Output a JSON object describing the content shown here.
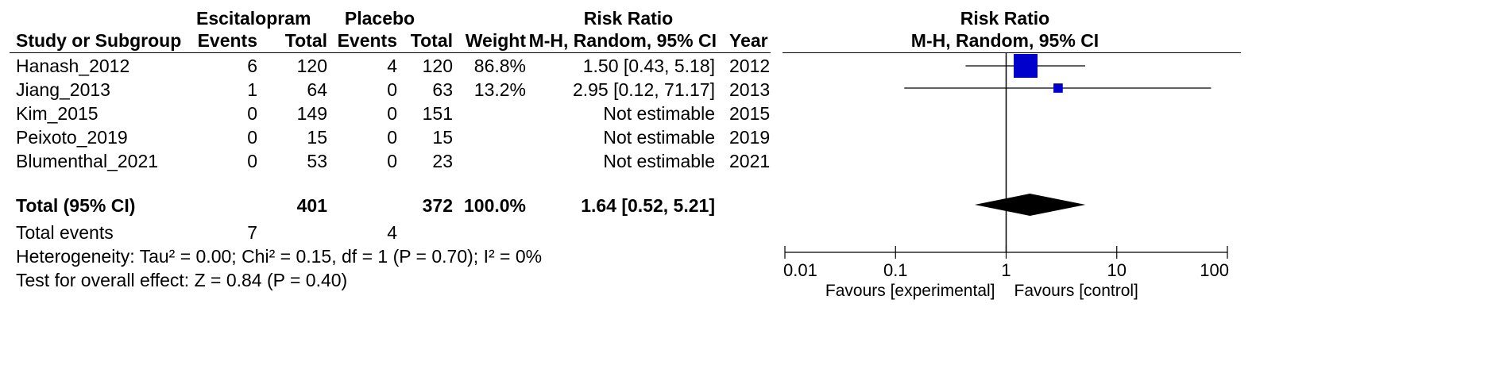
{
  "header": {
    "group1": "Escitalopram",
    "group2": "Placebo",
    "risk_ratio": "Risk Ratio",
    "study_col": "Study or Subgroup",
    "events": "Events",
    "total": "Total",
    "weight": "Weight",
    "method": "M-H, Random, 95% CI",
    "year": "Year",
    "plot_title": "Risk Ratio",
    "plot_method": "M-H, Random, 95% CI"
  },
  "studies": [
    {
      "name": "Hanash_2012",
      "e1": "6",
      "t1": "120",
      "e2": "4",
      "t2": "120",
      "weight": "86.8%",
      "ci_text": "1.50 [0.43, 5.18]",
      "year": "2012"
    },
    {
      "name": "Jiang_2013",
      "e1": "1",
      "t1": "64",
      "e2": "0",
      "t2": "63",
      "weight": "13.2%",
      "ci_text": "2.95 [0.12, 71.17]",
      "year": "2013"
    },
    {
      "name": "Kim_2015",
      "e1": "0",
      "t1": "149",
      "e2": "0",
      "t2": "151",
      "weight": "",
      "ci_text": "Not estimable",
      "year": "2015"
    },
    {
      "name": "Peixoto_2019",
      "e1": "0",
      "t1": "15",
      "e2": "0",
      "t2": "15",
      "weight": "",
      "ci_text": "Not estimable",
      "year": "2019"
    },
    {
      "name": "Blumenthal_2021",
      "e1": "0",
      "t1": "53",
      "e2": "0",
      "t2": "23",
      "weight": "",
      "ci_text": "Not estimable",
      "year": "2021"
    }
  ],
  "total": {
    "label": "Total (95% CI)",
    "t1": "401",
    "t2": "372",
    "weight": "100.0%",
    "ci_text": "1.64 [0.52, 5.21]"
  },
  "total_events": {
    "label": "Total events",
    "e1": "7",
    "e2": "4"
  },
  "heterogeneity": "Heterogeneity: Tau² = 0.00; Chi² = 0.15, df = 1 (P = 0.70); I² = 0%",
  "overall_effect": "Test for overall effect: Z = 0.84 (P = 0.40)",
  "chart_data": {
    "type": "scatter",
    "subtype": "forest-plot",
    "title": "Risk Ratio",
    "subtitle": "M-H, Random, 95% CI",
    "x_scale": "log",
    "xlim": [
      0.01,
      100
    ],
    "x_ticks": [
      "0.01",
      "0.1",
      "1",
      "10",
      "100"
    ],
    "x_tick_values": [
      0.01,
      0.1,
      1,
      10,
      100
    ],
    "xlabel_left": "Favours [experimental]",
    "xlabel_right": "Favours [control]",
    "reference_line": 1,
    "marker_color": "#0000cc",
    "studies": [
      {
        "name": "Hanash_2012",
        "rr": 1.5,
        "lower": 0.43,
        "upper": 5.18,
        "weight": 86.8
      },
      {
        "name": "Jiang_2013",
        "rr": 2.95,
        "lower": 0.12,
        "upper": 71.17,
        "weight": 13.2
      }
    ],
    "pooled": {
      "rr": 1.64,
      "lower": 0.52,
      "upper": 5.21
    }
  }
}
